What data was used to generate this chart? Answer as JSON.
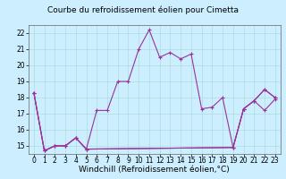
{
  "title": "Courbe du refroidissement éolien pour Cimetta",
  "xlabel": "Windchill (Refroidissement éolien,°C)",
  "ylabel": "",
  "background_color": "#cceeff",
  "grid_color": "#aadddd",
  "line_color": "#993399",
  "xlim": [
    -0.5,
    23.5
  ],
  "ylim": [
    14.5,
    22.5
  ],
  "xticks": [
    0,
    1,
    2,
    3,
    4,
    5,
    6,
    7,
    8,
    9,
    10,
    11,
    12,
    13,
    14,
    15,
    16,
    17,
    18,
    19,
    20,
    21,
    22,
    23
  ],
  "yticks": [
    15,
    16,
    17,
    18,
    19,
    20,
    21,
    22
  ],
  "series": [
    {
      "x": [
        0,
        1,
        2,
        3,
        4,
        5,
        6,
        7,
        8,
        9,
        10,
        11,
        12,
        13,
        14,
        15,
        16,
        17,
        18,
        19,
        20,
        21,
        22,
        23
      ],
      "y": [
        18.3,
        14.7,
        15.0,
        15.0,
        15.5,
        14.8,
        17.2,
        17.2,
        19.0,
        19.0,
        21.0,
        22.2,
        20.5,
        20.8,
        20.4,
        20.7,
        17.3,
        17.4,
        18.0,
        14.9,
        17.3,
        17.8,
        18.5,
        18.0
      ]
    },
    {
      "x": [
        0,
        1,
        2,
        3,
        4,
        5,
        19,
        20,
        21,
        22,
        23
      ],
      "y": [
        18.3,
        14.7,
        15.0,
        15.0,
        15.5,
        14.8,
        14.9,
        17.3,
        17.8,
        17.2,
        17.9
      ]
    },
    {
      "x": [
        0,
        1,
        2,
        3,
        4,
        5,
        19,
        20,
        21,
        22,
        23
      ],
      "y": [
        18.3,
        14.7,
        15.0,
        15.0,
        15.5,
        14.8,
        14.9,
        17.3,
        17.8,
        18.5,
        18.0
      ]
    }
  ],
  "title_fontsize": 6.5,
  "tick_fontsize": 5.5,
  "xlabel_fontsize": 6.5
}
